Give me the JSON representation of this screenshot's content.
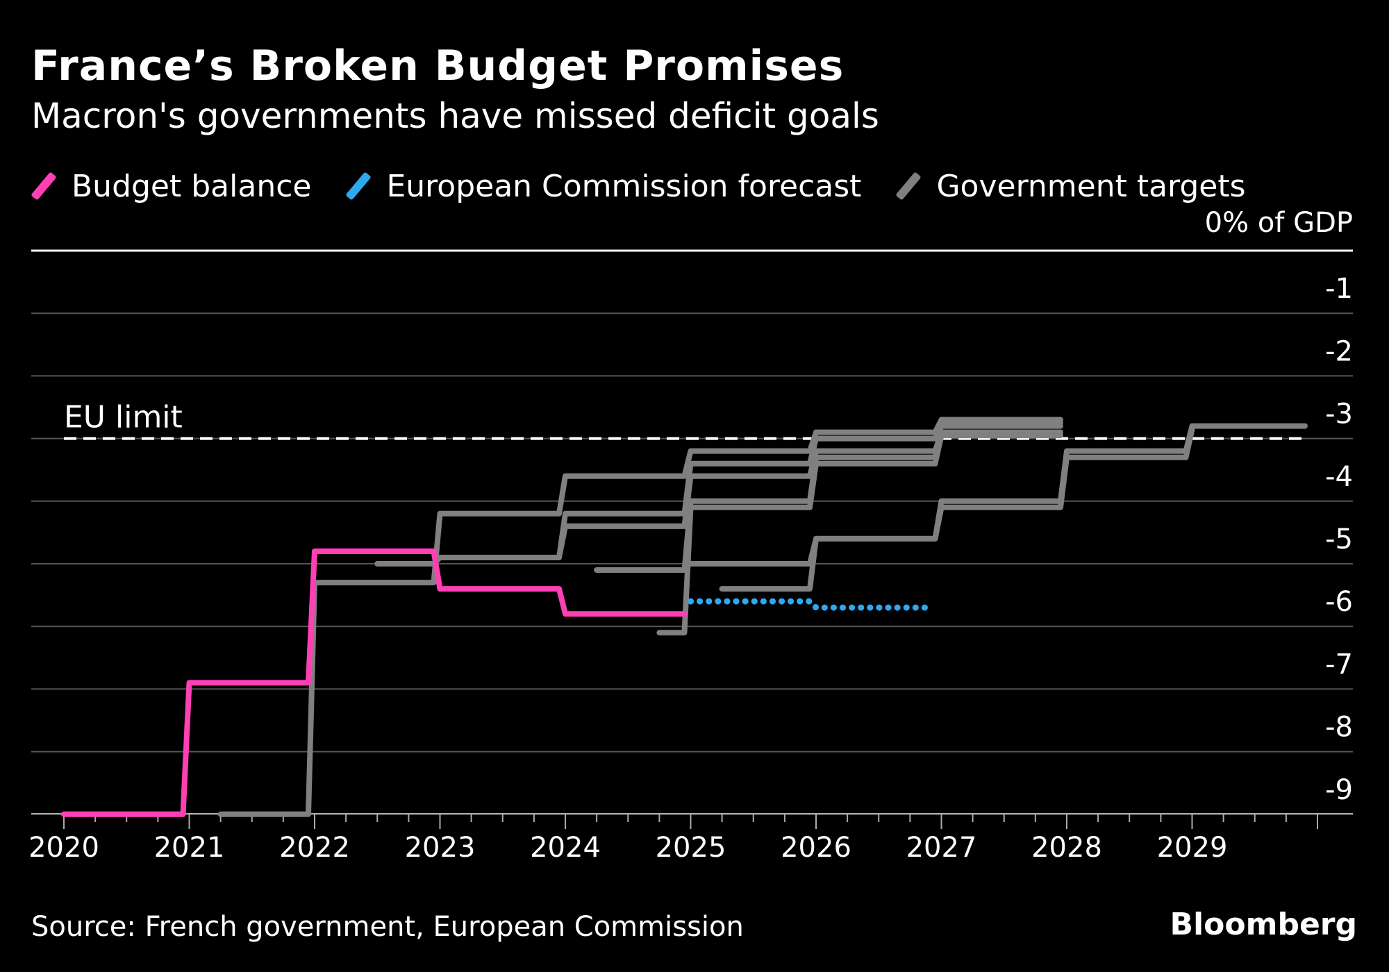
{
  "header": {
    "title": "France’s Broken Budget Promises",
    "subtitle": "Macron's governments have missed deficit goals"
  },
  "legend": [
    {
      "label": "Budget balance",
      "color": "#ff40b4"
    },
    {
      "label": "European Commission forecast",
      "color": "#2ea8f0"
    },
    {
      "label": "Government targets",
      "color": "#808080"
    }
  ],
  "footer": {
    "source": "Source: French government, European Commission",
    "brand": "Bloomberg"
  },
  "chart_data": {
    "type": "line",
    "ylabel": "0% of GDP",
    "ylim": [
      -9.45,
      0
    ],
    "xlim": [
      2019.75,
      2030.3
    ],
    "y_ticks": [
      {
        "value": -1,
        "label": "-1"
      },
      {
        "value": -2,
        "label": "-2"
      },
      {
        "value": -3,
        "label": "-3"
      },
      {
        "value": -4,
        "label": "-4"
      },
      {
        "value": -5,
        "label": "-5"
      },
      {
        "value": -6,
        "label": "-6"
      },
      {
        "value": -7,
        "label": "-7"
      },
      {
        "value": -8,
        "label": "-8"
      },
      {
        "value": -9,
        "label": "-9"
      }
    ],
    "x_ticks": [
      "2020",
      "2021",
      "2022",
      "2023",
      "2024",
      "2025",
      "2026",
      "2027",
      "2028",
      "2029"
    ],
    "reference_line": {
      "label": "EU limit",
      "value": -3
    },
    "series": [
      {
        "name": "Budget balance",
        "color": "#ff40b4",
        "style": "solid",
        "points": [
          [
            2020.0,
            -9.0
          ],
          [
            2020.95,
            -9.0
          ],
          [
            2021.0,
            -6.9
          ],
          [
            2021.95,
            -6.9
          ],
          [
            2022.0,
            -4.8
          ],
          [
            2022.95,
            -4.8
          ],
          [
            2023.0,
            -5.4
          ],
          [
            2023.95,
            -5.4
          ],
          [
            2024.0,
            -5.8
          ],
          [
            2024.95,
            -5.8
          ]
        ]
      },
      {
        "name": "European Commission forecast",
        "color": "#2ea8f0",
        "style": "dotted",
        "points": [
          [
            2025.0,
            -5.6
          ],
          [
            2025.95,
            -5.6
          ],
          [
            2026.0,
            -5.7
          ],
          [
            2026.9,
            -5.7
          ]
        ]
      },
      {
        "name": "Government targets",
        "color": "#808080",
        "style": "solid",
        "lines": [
          [
            [
              2021.25,
              -9.0
            ],
            [
              2021.95,
              -9.0
            ],
            [
              2022.0,
              -5.3
            ],
            [
              2022.95,
              -5.3
            ],
            [
              2023.0,
              -4.2
            ],
            [
              2023.95,
              -4.2
            ],
            [
              2024.0,
              -3.6
            ],
            [
              2024.95,
              -3.6
            ],
            [
              2025.0,
              -3.2
            ],
            [
              2025.95,
              -3.2
            ],
            [
              2026.0,
              -2.9
            ],
            [
              2026.95,
              -2.9
            ],
            [
              2027.0,
              -2.7
            ],
            [
              2027.95,
              -2.7
            ]
          ],
          [
            [
              2022.5,
              -5.0
            ],
            [
              2022.95,
              -5.0
            ],
            [
              2023.0,
              -4.9
            ],
            [
              2023.95,
              -4.9
            ],
            [
              2024.0,
              -4.2
            ],
            [
              2024.95,
              -4.2
            ],
            [
              2025.0,
              -3.4
            ],
            [
              2025.95,
              -3.4
            ],
            [
              2026.0,
              -3.0
            ],
            [
              2026.95,
              -3.0
            ],
            [
              2027.0,
              -2.8
            ],
            [
              2027.95,
              -2.8
            ]
          ],
          [
            [
              2023.25,
              -4.9
            ],
            [
              2023.95,
              -4.9
            ],
            [
              2024.0,
              -4.4
            ],
            [
              2024.95,
              -4.4
            ],
            [
              2025.0,
              -3.6
            ],
            [
              2025.95,
              -3.6
            ],
            [
              2026.0,
              -3.2
            ],
            [
              2026.95,
              -3.2
            ],
            [
              2027.0,
              -2.9
            ],
            [
              2027.95,
              -2.9
            ]
          ],
          [
            [
              2024.25,
              -5.1
            ],
            [
              2024.95,
              -5.1
            ],
            [
              2025.0,
              -4.0
            ],
            [
              2025.95,
              -4.0
            ],
            [
              2026.0,
              -3.3
            ],
            [
              2026.95,
              -3.3
            ],
            [
              2027.0,
              -2.75
            ],
            [
              2027.95,
              -2.75
            ]
          ],
          [
            [
              2024.75,
              -6.1
            ],
            [
              2024.95,
              -6.1
            ],
            [
              2025.0,
              -4.1
            ],
            [
              2025.95,
              -4.1
            ],
            [
              2026.0,
              -3.4
            ],
            [
              2026.95,
              -3.4
            ],
            [
              2027.0,
              -2.95
            ],
            [
              2027.95,
              -2.95
            ]
          ],
          [
            [
              2025.25,
              -5.4
            ],
            [
              2025.95,
              -5.4
            ],
            [
              2026.0,
              -4.6
            ],
            [
              2026.95,
              -4.6
            ],
            [
              2027.0,
              -4.0
            ],
            [
              2027.95,
              -4.0
            ],
            [
              2028.0,
              -3.2
            ],
            [
              2028.95,
              -3.2
            ],
            [
              2029.0,
              -2.8
            ],
            [
              2029.9,
              -2.8
            ]
          ],
          [
            [
              2025.0,
              -5.0
            ],
            [
              2025.95,
              -5.0
            ],
            [
              2026.0,
              -4.6
            ],
            [
              2026.95,
              -4.6
            ],
            [
              2027.0,
              -4.1
            ],
            [
              2027.95,
              -4.1
            ],
            [
              2028.0,
              -3.3
            ],
            [
              2028.95,
              -3.3
            ],
            [
              2029.0,
              -2.85
            ]
          ]
        ]
      }
    ]
  }
}
